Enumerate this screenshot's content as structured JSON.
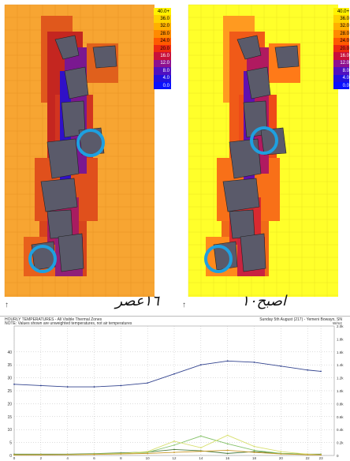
{
  "legend": {
    "values": [
      "40.0+",
      "36.0",
      "32.0",
      "28.0",
      "24.0",
      "20.0",
      "16.0",
      "12.0",
      "8.0",
      "4.0",
      "0.0"
    ],
    "colors": [
      "#fff200",
      "#ffd200",
      "#ffb000",
      "#ff8a00",
      "#ff5a00",
      "#ee2a10",
      "#c8103a",
      "#8e1090",
      "#5010c0",
      "#2010e0",
      "#0a10ff"
    ]
  },
  "panels": {
    "left": {
      "caption": "١٦عصر",
      "background_color": "#f7a532",
      "highlight_color": "#1ea0e0"
    },
    "right": {
      "caption": "اصبح١٠",
      "background_color": "#ffff2a",
      "highlight_color": "#1ea0e0"
    }
  },
  "chart": {
    "header": {
      "title": "HOURLY TEMPERATURES - All Visible Thermal Zones",
      "note": "NOTE: Values shown are unweighted temperatures, not air temperatures",
      "date": "Sunday 5th August (217) - Yemeni Bowayn, SN"
    },
    "right_unit": "W/m2"
  },
  "chart_data": {
    "type": "line",
    "xlabel": "",
    "ylabel": "",
    "x": [
      0,
      2,
      4,
      6,
      8,
      10,
      12,
      14,
      16,
      18,
      20,
      22,
      23
    ],
    "xlim": [
      0,
      24
    ],
    "ylim": [
      0,
      50
    ],
    "y_ticks": [
      "0",
      "5",
      "10",
      "15",
      "20",
      "25",
      "30",
      "35",
      "40"
    ],
    "x_ticks": [
      "0",
      "2",
      "4",
      "6",
      "8",
      "10",
      "12",
      "14",
      "16",
      "18",
      "20",
      "22",
      "23"
    ],
    "right_ticks": [
      "0",
      "0.2k",
      "0.4k",
      "0.6k",
      "0.8k",
      "1.0k",
      "1.2k",
      "1.4k",
      "1.6k",
      "1.8k",
      "2.0k"
    ],
    "series": [
      {
        "values": [
          27.5,
          27.0,
          26.5,
          26.5,
          27.0,
          28.0,
          31.5,
          35.0,
          36.5,
          36.0,
          34.5,
          33.0,
          32.5
        ],
        "color": "#33448f"
      },
      {
        "values": [
          0.5,
          0.5,
          0.5,
          0.7,
          1.0,
          1.3,
          2.3,
          1.8,
          0.8,
          1.5,
          0.8,
          0.5,
          0.5
        ],
        "color": "#4a7a3a"
      },
      {
        "values": [
          0.3,
          0.3,
          0.4,
          0.6,
          0.8,
          1.2,
          4.0,
          7.5,
          4.5,
          2.0,
          0.8,
          0.4,
          0.3
        ],
        "color": "#86c26a"
      },
      {
        "values": [
          0.2,
          0.3,
          0.3,
          0.5,
          0.7,
          1.5,
          5.5,
          3.0,
          7.8,
          3.5,
          1.5,
          0.5,
          0.3
        ],
        "color": "#d8e070"
      },
      {
        "values": [
          0.2,
          0.2,
          0.3,
          0.4,
          0.6,
          0.8,
          1.2,
          1.6,
          2.0,
          1.2,
          0.6,
          0.3,
          0.2
        ],
        "color": "#c99a2a"
      }
    ]
  }
}
